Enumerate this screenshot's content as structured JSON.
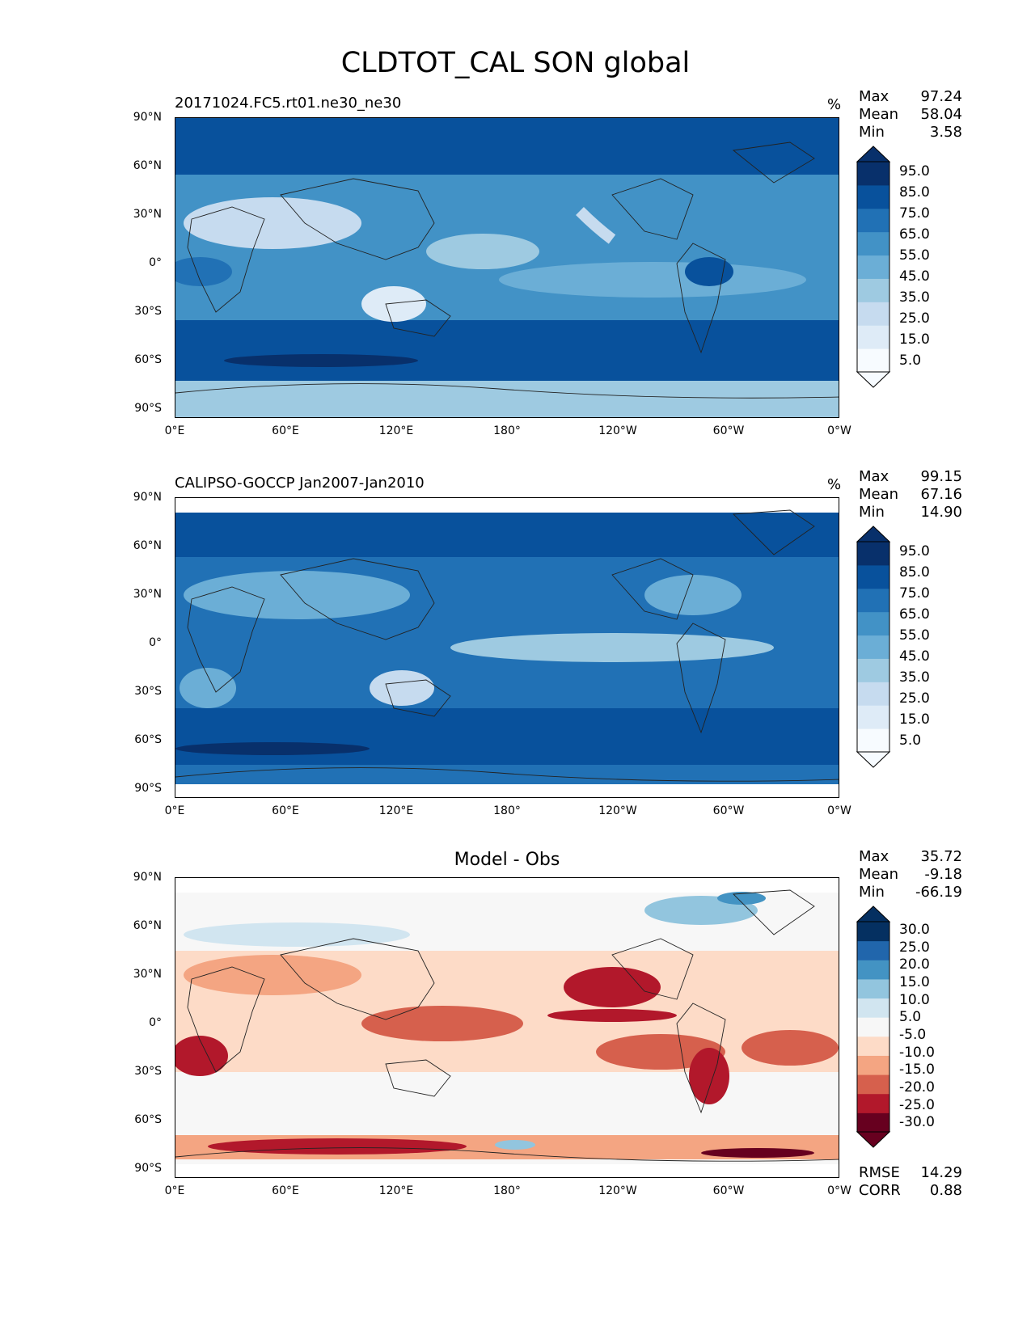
{
  "figure": {
    "title": "CLDTOT_CAL SON global"
  },
  "axes": {
    "lat_ticks": [
      "90°N",
      "60°N",
      "30°N",
      "0°",
      "30°S",
      "60°S",
      "90°S"
    ],
    "lon_ticks": [
      "0°E",
      "60°E",
      "120°E",
      "180°",
      "120°W",
      "60°W",
      "0°W"
    ]
  },
  "panels": [
    {
      "title": "20171024.FC5.rt01.ne30_ne30",
      "units": "%",
      "stats": {
        "max_label": "Max",
        "max": "97.24",
        "mean_label": "Mean",
        "mean": "58.04",
        "min_label": "Min",
        "min": "3.58"
      },
      "colorbar": [
        "95.0",
        "85.0",
        "75.0",
        "65.0",
        "55.0",
        "45.0",
        "35.0",
        "25.0",
        "15.0",
        "5.0"
      ],
      "colors": [
        "#f7fbff",
        "#deebf7",
        "#c6dbef",
        "#9ecae1",
        "#6baed6",
        "#4292c6",
        "#2171b5",
        "#08519c",
        "#08306b"
      ]
    },
    {
      "title": "CALIPSO-GOCCP Jan2007-Jan2010",
      "units": "%",
      "stats": {
        "max_label": "Max",
        "max": "99.15",
        "mean_label": "Mean",
        "mean": "67.16",
        "min_label": "Min",
        "min": "14.90"
      },
      "colorbar": [
        "95.0",
        "85.0",
        "75.0",
        "65.0",
        "55.0",
        "45.0",
        "35.0",
        "25.0",
        "15.0",
        "5.0"
      ],
      "colors": [
        "#f7fbff",
        "#deebf7",
        "#c6dbef",
        "#9ecae1",
        "#6baed6",
        "#4292c6",
        "#2171b5",
        "#08519c",
        "#08306b"
      ]
    },
    {
      "title": "Model - Obs",
      "units": "",
      "stats": {
        "max_label": "Max",
        "max": "35.72",
        "mean_label": "Mean",
        "mean": "-9.18",
        "min_label": "Min",
        "min": "-66.19"
      },
      "colorbar": [
        "30.0",
        "25.0",
        "20.0",
        "15.0",
        "10.0",
        "5.0",
        "-5.0",
        "-10.0",
        "-15.0",
        "-20.0",
        "-25.0",
        "-30.0"
      ],
      "colors": [
        "#67001f",
        "#b2182b",
        "#d6604d",
        "#f4a582",
        "#fddbc7",
        "#f7f7f7",
        "#d1e5f0",
        "#92c5de",
        "#4393c3",
        "#2166ac",
        "#053061"
      ],
      "rmse_label": "RMSE",
      "rmse": "14.29",
      "corr_label": "CORR",
      "corr": "0.88"
    }
  ]
}
